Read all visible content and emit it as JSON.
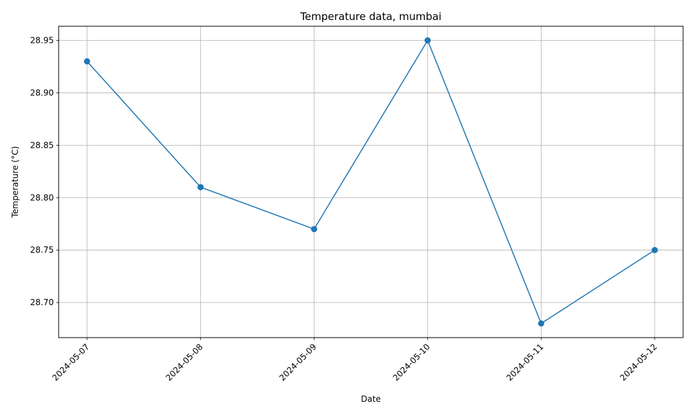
{
  "chart_data": {
    "type": "line",
    "title": "Temperature data, mumbai",
    "xlabel": "Date",
    "ylabel": "Temperature (°C)",
    "x": [
      "2024-05-07",
      "2024-05-08",
      "2024-05-09",
      "2024-05-10",
      "2024-05-11",
      "2024-05-12"
    ],
    "series": [
      {
        "values": [
          28.93,
          28.81,
          28.77,
          28.95,
          28.68,
          28.75
        ],
        "color": "#1f77b4",
        "marker": "circle"
      }
    ],
    "yticks": [
      "28.70",
      "28.75",
      "28.80",
      "28.85",
      "28.90",
      "28.95"
    ],
    "ylim": [
      28.6665,
      28.9635
    ],
    "grid": true,
    "x_tick_rotation": 45
  }
}
